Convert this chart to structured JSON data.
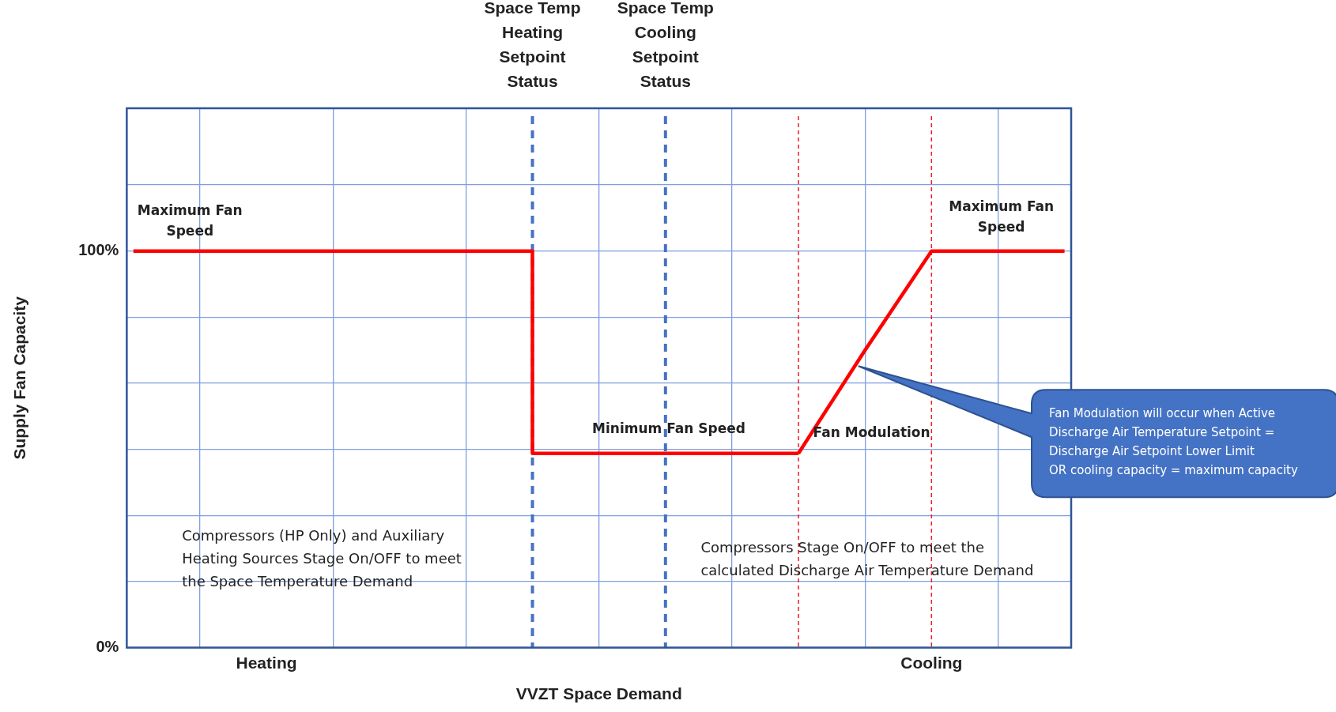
{
  "chart_data": {
    "type": "line",
    "xlabel": "VVZT Space Demand",
    "ylabel": "Supply Fan Capacity",
    "categories": [
      null,
      null,
      "Heating",
      null,
      null,
      null,
      null,
      null,
      null,
      null,
      null,
      null,
      "Cooling",
      null,
      null
    ],
    "series": [
      {
        "type": "step",
        "color": "#ff0000",
        "values": [
          100,
          100,
          100,
          100,
          100,
          100,
          49,
          49,
          49,
          49,
          49,
          null,
          null,
          null,
          null
        ]
      },
      {
        "color": "#ff0000",
        "values": [
          null,
          null,
          null,
          null,
          null,
          null,
          null,
          null,
          null,
          null,
          49,
          75,
          100,
          100,
          100
        ]
      }
    ],
    "ylim": [
      0,
      136
    ],
    "yticks": [
      {
        "value": 0,
        "label": "0%"
      },
      {
        "value": 16.7,
        "label": null
      },
      {
        "value": 33.3,
        "label": null
      },
      {
        "value": 50,
        "label": null
      },
      {
        "value": 66.7,
        "label": null
      },
      {
        "value": 83.3,
        "label": null
      },
      {
        "value": 100,
        "label": "100%"
      },
      {
        "value": 116.7,
        "label": null
      }
    ],
    "grid": true,
    "marker": "none",
    "line_style": "solid",
    "annotations": [
      "Space Temp\nHeating\nSetpoint\nStatus",
      "Space Temp\nCooling\nSetpoint\nStatus",
      "Maximum Fan\nSpeed",
      "Maximum Fan\nSpeed",
      "Minimum Fan Speed",
      "Fan Modulation",
      "Compressors (HP Only) and Auxiliary\nHeating Sources Stage On/OFF to meet\nthe Space Temperature Demand",
      "Compressors Stage On/OFF to meet the\ncalculated Discharge Air Temperature Demand",
      "Fan Modulation will occur when Active\nDischarge Air Temperature Setpoint =\nDischarge Air Setpoint Lower Limit\nOR cooling capacity = maximum capacity"
    ]
  }
}
